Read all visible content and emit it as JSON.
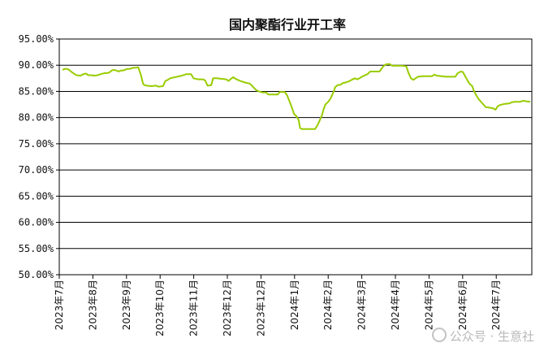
{
  "chart_data": {
    "type": "line",
    "title": "国内聚酯行业开工率",
    "xlabel": "",
    "ylabel": "",
    "ylim": [
      50,
      95
    ],
    "yticks": [
      "50.00%",
      "55.00%",
      "60.00%",
      "65.00%",
      "70.00%",
      "75.00%",
      "80.00%",
      "85.00%",
      "90.00%",
      "95.00%"
    ],
    "xticks": [
      "2023年7月",
      "2023年8月",
      "2023年9月",
      "2023年10月",
      "2023年11月",
      "2023年12月",
      "2023年12月",
      "2024年1月",
      "2024年2月",
      "2024年3月",
      "2024年4月",
      "2024年5月",
      "2024年6月",
      "2024年7月"
    ],
    "grid": true,
    "legend": "none",
    "series": [
      {
        "color": "#99cc00",
        "points": [
          [
            0,
            89.1
          ],
          [
            0.02,
            89.2
          ],
          [
            0.05,
            89.3
          ],
          [
            0.1,
            89.3
          ],
          [
            0.14,
            89.1
          ],
          [
            0.18,
            88.8
          ],
          [
            0.26,
            88.3
          ],
          [
            0.3,
            88.1
          ],
          [
            0.38,
            88.0
          ],
          [
            0.45,
            88.3
          ],
          [
            0.5,
            88.4
          ],
          [
            0.55,
            88.1
          ],
          [
            0.62,
            88.1
          ],
          [
            0.68,
            88.0
          ],
          [
            0.75,
            88.1
          ],
          [
            0.82,
            88.3
          ],
          [
            0.9,
            88.5
          ],
          [
            0.95,
            88.5
          ],
          [
            1.0,
            88.6
          ],
          [
            1.05,
            89.0
          ],
          [
            1.1,
            89.1
          ],
          [
            1.15,
            89.0
          ],
          [
            1.2,
            88.8
          ],
          [
            1.25,
            89.0
          ],
          [
            1.3,
            89.0
          ],
          [
            1.35,
            89.2
          ],
          [
            1.4,
            89.3
          ],
          [
            1.45,
            89.3
          ],
          [
            1.5,
            89.5
          ],
          [
            1.56,
            89.5
          ],
          [
            1.62,
            89.6
          ],
          [
            1.68,
            88.0
          ],
          [
            1.72,
            86.5
          ],
          [
            1.75,
            86.2
          ],
          [
            1.8,
            86.1
          ],
          [
            1.9,
            86.0
          ],
          [
            2.0,
            86.1
          ],
          [
            2.05,
            85.9
          ],
          [
            2.15,
            86.0
          ],
          [
            2.2,
            87.0
          ],
          [
            2.25,
            87.2
          ],
          [
            2.3,
            87.5
          ],
          [
            2.35,
            87.6
          ],
          [
            2.45,
            87.8
          ],
          [
            2.55,
            88.0
          ],
          [
            2.65,
            88.3
          ],
          [
            2.75,
            88.3
          ],
          [
            2.8,
            87.5
          ],
          [
            2.9,
            87.3
          ],
          [
            3.0,
            87.3
          ],
          [
            3.05,
            87.1
          ],
          [
            3.1,
            86.1
          ],
          [
            3.18,
            86.2
          ],
          [
            3.22,
            87.5
          ],
          [
            3.3,
            87.5
          ],
          [
            3.4,
            87.4
          ],
          [
            3.5,
            87.3
          ],
          [
            3.55,
            87.0
          ],
          [
            3.6,
            87.4
          ],
          [
            3.65,
            87.7
          ],
          [
            3.72,
            87.3
          ],
          [
            3.8,
            87.0
          ],
          [
            3.9,
            86.7
          ],
          [
            4.0,
            86.5
          ],
          [
            4.05,
            86.1
          ],
          [
            4.1,
            85.6
          ],
          [
            4.15,
            85.2
          ],
          [
            4.2,
            85.0
          ],
          [
            4.28,
            84.8
          ],
          [
            4.35,
            84.8
          ],
          [
            4.4,
            84.4
          ],
          [
            4.5,
            84.4
          ],
          [
            4.6,
            84.4
          ],
          [
            4.65,
            84.9
          ],
          [
            4.75,
            84.9
          ],
          [
            4.8,
            84.3
          ],
          [
            4.88,
            82.5
          ],
          [
            4.92,
            81.5
          ],
          [
            4.95,
            80.7
          ],
          [
            5.0,
            80.3
          ],
          [
            5.05,
            79.5
          ],
          [
            5.08,
            78.0
          ],
          [
            5.12,
            77.8
          ],
          [
            5.3,
            77.8
          ],
          [
            5.4,
            77.8
          ],
          [
            5.45,
            78.5
          ],
          [
            5.5,
            79.5
          ],
          [
            5.55,
            80.5
          ],
          [
            5.58,
            81.5
          ],
          [
            5.62,
            82.5
          ],
          [
            5.68,
            83.0
          ],
          [
            5.72,
            83.5
          ],
          [
            5.75,
            84.0
          ],
          [
            5.8,
            85.0
          ],
          [
            5.83,
            85.8
          ],
          [
            5.88,
            86.2
          ],
          [
            5.95,
            86.3
          ],
          [
            6.0,
            86.6
          ],
          [
            6.05,
            86.7
          ],
          [
            6.12,
            86.9
          ],
          [
            6.18,
            87.2
          ],
          [
            6.25,
            87.5
          ],
          [
            6.3,
            87.3
          ],
          [
            6.35,
            87.5
          ],
          [
            6.4,
            87.8
          ],
          [
            6.45,
            88.0
          ],
          [
            6.52,
            88.3
          ],
          [
            6.58,
            88.8
          ],
          [
            6.65,
            88.8
          ],
          [
            6.72,
            88.8
          ],
          [
            6.78,
            88.8
          ],
          [
            6.82,
            89.3
          ],
          [
            6.85,
            89.7
          ],
          [
            6.9,
            90.1
          ],
          [
            6.95,
            90.2
          ],
          [
            7.0,
            90.2
          ],
          [
            7.05,
            89.9
          ],
          [
            7.15,
            89.9
          ],
          [
            7.25,
            89.9
          ],
          [
            7.35,
            89.8
          ],
          [
            7.4,
            88.5
          ],
          [
            7.45,
            87.5
          ],
          [
            7.5,
            87.2
          ],
          [
            7.55,
            87.5
          ],
          [
            7.6,
            87.8
          ],
          [
            7.7,
            87.9
          ],
          [
            7.8,
            87.9
          ],
          [
            7.9,
            87.9
          ],
          [
            7.95,
            88.2
          ],
          [
            8.0,
            88.0
          ],
          [
            8.1,
            87.9
          ],
          [
            8.2,
            87.8
          ],
          [
            8.3,
            87.8
          ],
          [
            8.4,
            87.8
          ],
          [
            8.45,
            88.5
          ],
          [
            8.52,
            88.8
          ],
          [
            8.56,
            88.7
          ],
          [
            8.62,
            87.7
          ],
          [
            8.7,
            86.5
          ],
          [
            8.76,
            86.0
          ],
          [
            8.8,
            85.0
          ],
          [
            8.85,
            84.2
          ],
          [
            8.9,
            83.5
          ],
          [
            8.95,
            83.0
          ],
          [
            9.0,
            82.5
          ],
          [
            9.05,
            82.0
          ],
          [
            9.12,
            81.9
          ],
          [
            9.2,
            81.8
          ],
          [
            9.26,
            81.5
          ],
          [
            9.3,
            82.1
          ],
          [
            9.35,
            82.4
          ],
          [
            9.45,
            82.6
          ],
          [
            9.55,
            82.7
          ],
          [
            9.6,
            82.9
          ],
          [
            9.65,
            83.0
          ],
          [
            9.72,
            83.0
          ],
          [
            9.78,
            83.0
          ],
          [
            9.85,
            83.2
          ],
          [
            9.92,
            83.1
          ],
          [
            10.0,
            83.0
          ]
        ]
      }
    ]
  },
  "watermark": {
    "icon": "wechat-channel-icon",
    "text": "公众号 · 生意社"
  }
}
